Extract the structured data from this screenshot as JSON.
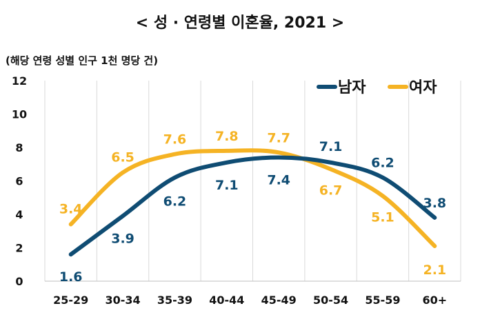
{
  "chart_data": {
    "type": "line",
    "title": "< 성 · 연령별  이혼율, 2021 >",
    "unit_label": "(해당 연령 성별 인구 1천 명당 건)",
    "categories": [
      "25-29",
      "30-34",
      "35-39",
      "40-44",
      "45-49",
      "50-54",
      "55-59",
      "60+"
    ],
    "ylim": [
      0,
      12
    ],
    "yticks": [
      0,
      2,
      4,
      6,
      8,
      10,
      12
    ],
    "grid": "vertical",
    "legend_position": "top-right",
    "series": [
      {
        "name": "남자",
        "color": "#0f4c73",
        "values": [
          1.6,
          3.9,
          6.2,
          7.1,
          7.4,
          7.1,
          6.2,
          3.8
        ],
        "labels": [
          "1.6",
          "3.9",
          "6.2",
          "7.1",
          "7.4",
          "7.1",
          "6.2",
          "3.8"
        ]
      },
      {
        "name": "여자",
        "color": "#f5b324",
        "values": [
          3.4,
          6.5,
          7.6,
          7.8,
          7.7,
          6.7,
          5.1,
          2.1
        ],
        "labels": [
          "3.4",
          "6.5",
          "7.6",
          "7.8",
          "7.7",
          "6.7",
          "5.1",
          "2.1"
        ]
      }
    ]
  }
}
